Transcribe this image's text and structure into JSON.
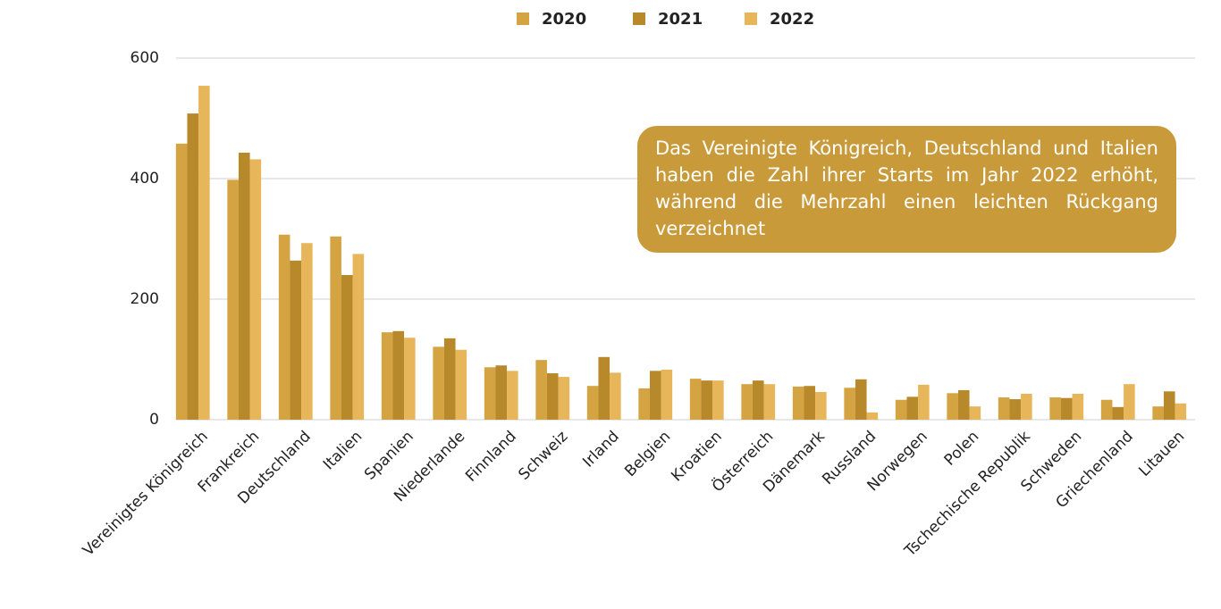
{
  "chart_data": {
    "type": "bar",
    "categories": [
      "Vereinigtes Königreich",
      "Frankreich",
      "Deutschland",
      "Italien",
      "Spanien",
      "Niederlande",
      "Finnland",
      "Schweiz",
      "Irland",
      "Belgien",
      "Kroatien",
      "Österreich",
      "Dänemark",
      "Russland",
      "Norwegen",
      "Polen",
      "Tschechische Republik",
      "Schweden",
      "Griechenland",
      "Litauen"
    ],
    "series": [
      {
        "name": "2020",
        "color": "#d4a443",
        "values": [
          458,
          398,
          307,
          304,
          145,
          121,
          87,
          99,
          56,
          52,
          68,
          59,
          55,
          53,
          33,
          44,
          37,
          37,
          33,
          22
        ]
      },
      {
        "name": "2021",
        "color": "#b8892a",
        "values": [
          508,
          443,
          264,
          240,
          147,
          135,
          90,
          77,
          104,
          81,
          65,
          65,
          56,
          67,
          38,
          49,
          34,
          36,
          21,
          47
        ]
      },
      {
        "name": "2022",
        "color": "#e8b65a",
        "values": [
          554,
          432,
          293,
          275,
          136,
          116,
          81,
          71,
          78,
          83,
          65,
          59,
          46,
          12,
          58,
          22,
          43,
          43,
          59,
          27
        ]
      }
    ],
    "ylim": [
      0,
      600
    ],
    "yticks": [
      0,
      200,
      400,
      600
    ],
    "grid": true,
    "legend": "top",
    "annotation": "Das Vereinigte Königreich, Deutschland und Italien haben die Zahl ihrer Starts im Jahr 2022 erhöht, während die Mehrzahl einen leichten Rückgang verzeichnet"
  }
}
